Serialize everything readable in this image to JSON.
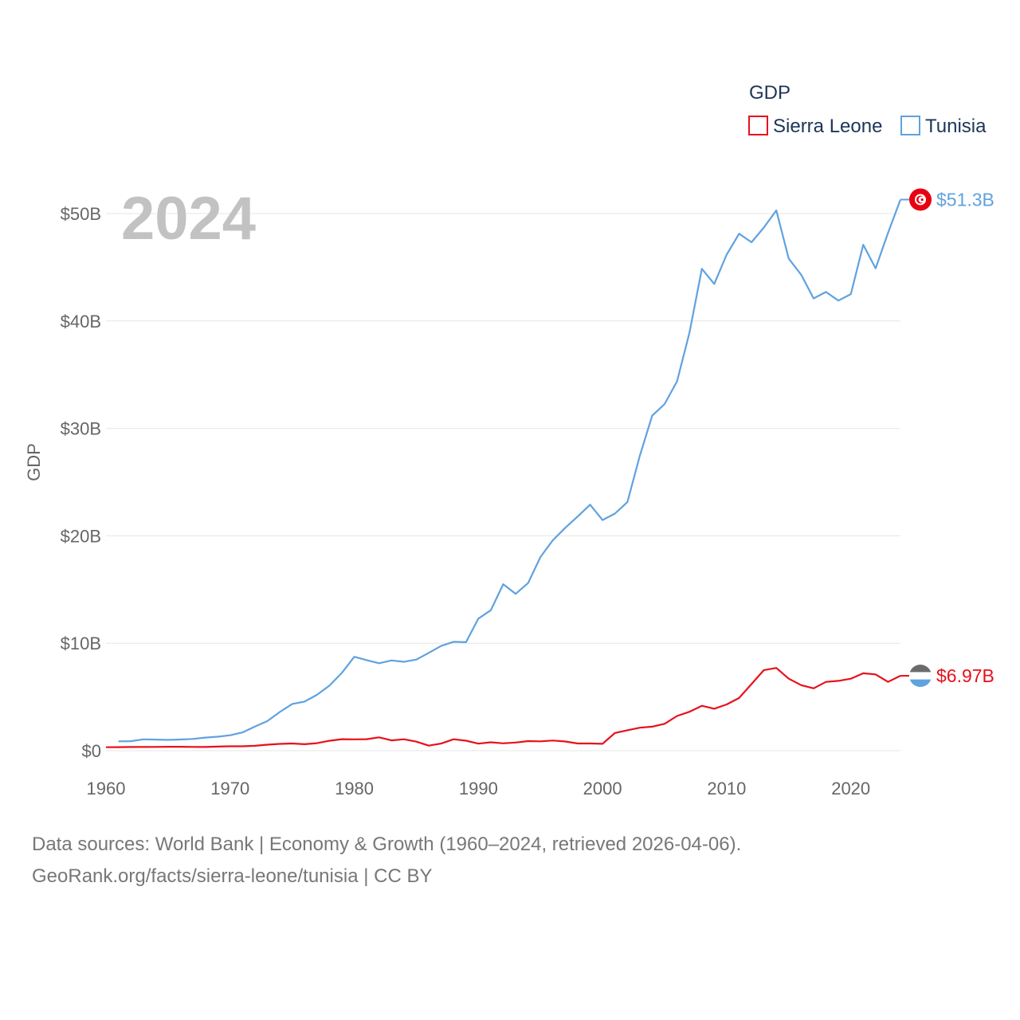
{
  "chart_data": {
    "type": "line",
    "title": "GDP",
    "legend_title": "GDP",
    "ylabel": "GDP",
    "xlabel": "",
    "year_label": "2024",
    "xlim": [
      1960,
      2024
    ],
    "ylim": [
      0,
      52
    ],
    "x_ticks": [
      1960,
      1970,
      1980,
      1990,
      2000,
      2010,
      2020
    ],
    "x_tick_labels": [
      "1960",
      "1970",
      "1980",
      "1990",
      "2000",
      "2010",
      "2020"
    ],
    "y_ticks": [
      0,
      10,
      20,
      30,
      40,
      50
    ],
    "y_tick_labels": [
      "$0",
      "$10B",
      "$20B",
      "$30B",
      "$40B",
      "$50B"
    ],
    "unit": "billions USD",
    "series": [
      {
        "name": "Sierra Leone",
        "color": "#e8101b",
        "end_label": "$6.97B",
        "points": [
          [
            1960,
            0.32
          ],
          [
            1961,
            0.33
          ],
          [
            1962,
            0.34
          ],
          [
            1963,
            0.34
          ],
          [
            1964,
            0.35
          ],
          [
            1965,
            0.36
          ],
          [
            1966,
            0.36
          ],
          [
            1967,
            0.35
          ],
          [
            1968,
            0.34
          ],
          [
            1969,
            0.38
          ],
          [
            1970,
            0.41
          ],
          [
            1971,
            0.41
          ],
          [
            1972,
            0.45
          ],
          [
            1973,
            0.56
          ],
          [
            1974,
            0.63
          ],
          [
            1975,
            0.67
          ],
          [
            1976,
            0.6
          ],
          [
            1977,
            0.7
          ],
          [
            1978,
            0.92
          ],
          [
            1979,
            1.07
          ],
          [
            1980,
            1.05
          ],
          [
            1981,
            1.07
          ],
          [
            1982,
            1.24
          ],
          [
            1983,
            0.96
          ],
          [
            1984,
            1.06
          ],
          [
            1985,
            0.84
          ],
          [
            1986,
            0.47
          ],
          [
            1987,
            0.66
          ],
          [
            1988,
            1.06
          ],
          [
            1989,
            0.93
          ],
          [
            1990,
            0.65
          ],
          [
            1991,
            0.78
          ],
          [
            1992,
            0.68
          ],
          [
            1993,
            0.76
          ],
          [
            1994,
            0.89
          ],
          [
            1995,
            0.87
          ],
          [
            1996,
            0.94
          ],
          [
            1997,
            0.85
          ],
          [
            1998,
            0.67
          ],
          [
            1999,
            0.67
          ],
          [
            2000,
            0.64
          ],
          [
            2001,
            1.65
          ],
          [
            2002,
            1.9
          ],
          [
            2003,
            2.14
          ],
          [
            2004,
            2.23
          ],
          [
            2005,
            2.5
          ],
          [
            2006,
            3.23
          ],
          [
            2007,
            3.62
          ],
          [
            2008,
            4.18
          ],
          [
            2009,
            3.9
          ],
          [
            2010,
            4.3
          ],
          [
            2011,
            4.9
          ],
          [
            2012,
            6.2
          ],
          [
            2013,
            7.5
          ],
          [
            2014,
            7.7
          ],
          [
            2015,
            6.7
          ],
          [
            2016,
            6.1
          ],
          [
            2017,
            5.8
          ],
          [
            2018,
            6.4
          ],
          [
            2019,
            6.5
          ],
          [
            2020,
            6.7
          ],
          [
            2021,
            7.2
          ],
          [
            2022,
            7.1
          ],
          [
            2023,
            6.4
          ],
          [
            2024,
            6.97
          ]
        ]
      },
      {
        "name": "Tunisia",
        "color": "#5fa2e0",
        "end_label": "$51.3B",
        "points": [
          [
            1961,
            0.87
          ],
          [
            1962,
            0.88
          ],
          [
            1963,
            1.05
          ],
          [
            1964,
            1.03
          ],
          [
            1965,
            1.0
          ],
          [
            1966,
            1.04
          ],
          [
            1967,
            1.09
          ],
          [
            1968,
            1.22
          ],
          [
            1969,
            1.3
          ],
          [
            1970,
            1.43
          ],
          [
            1971,
            1.7
          ],
          [
            1972,
            2.25
          ],
          [
            1973,
            2.75
          ],
          [
            1974,
            3.6
          ],
          [
            1975,
            4.35
          ],
          [
            1976,
            4.57
          ],
          [
            1977,
            5.2
          ],
          [
            1978,
            6.05
          ],
          [
            1979,
            7.24
          ],
          [
            1980,
            8.74
          ],
          [
            1981,
            8.43
          ],
          [
            1982,
            8.14
          ],
          [
            1983,
            8.4
          ],
          [
            1984,
            8.27
          ],
          [
            1985,
            8.48
          ],
          [
            1986,
            9.1
          ],
          [
            1987,
            9.75
          ],
          [
            1988,
            10.13
          ],
          [
            1989,
            10.1
          ],
          [
            1990,
            12.29
          ],
          [
            1991,
            13.07
          ],
          [
            1992,
            15.5
          ],
          [
            1993,
            14.6
          ],
          [
            1994,
            15.6
          ],
          [
            1995,
            18.03
          ],
          [
            1996,
            19.59
          ],
          [
            1997,
            20.75
          ],
          [
            1998,
            21.8
          ],
          [
            1999,
            22.9
          ],
          [
            2000,
            21.47
          ],
          [
            2001,
            22.07
          ],
          [
            2002,
            23.14
          ],
          [
            2003,
            27.45
          ],
          [
            2004,
            31.18
          ],
          [
            2005,
            32.27
          ],
          [
            2006,
            34.38
          ],
          [
            2007,
            38.91
          ],
          [
            2008,
            44.86
          ],
          [
            2009,
            43.45
          ],
          [
            2010,
            46.18
          ],
          [
            2011,
            48.12
          ],
          [
            2012,
            47.33
          ],
          [
            2013,
            48.7
          ],
          [
            2014,
            50.3
          ],
          [
            2015,
            45.8
          ],
          [
            2016,
            44.3
          ],
          [
            2017,
            42.1
          ],
          [
            2018,
            42.7
          ],
          [
            2019,
            41.9
          ],
          [
            2020,
            42.5
          ],
          [
            2021,
            47.1
          ],
          [
            2022,
            44.9
          ],
          [
            2023,
            48.2
          ],
          [
            2024,
            51.3
          ]
        ]
      }
    ]
  },
  "source": {
    "line1": "Data sources: World Bank | Economy & Growth (1960–2024, retrieved 2026-04-06).",
    "line2": "GeoRank.org/facts/sierra-leone/tunisia | CC BY"
  }
}
